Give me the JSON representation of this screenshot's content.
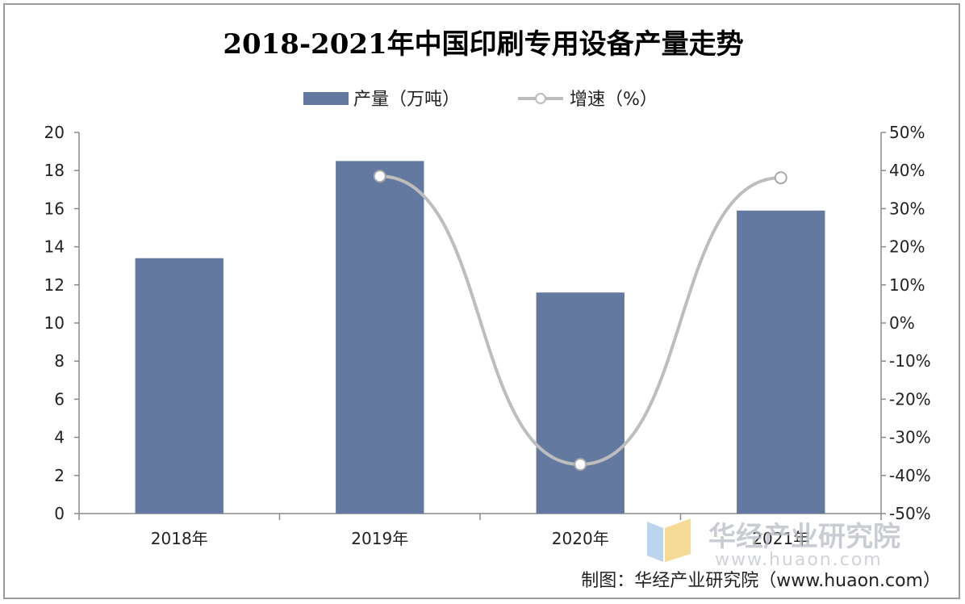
{
  "chart_data": {
    "type": "bar",
    "title": "2018-2021年中国印刷专用设备产量走势",
    "categories": [
      "2018年",
      "2019年",
      "2020年",
      "2021年"
    ],
    "series": [
      {
        "name": "产量（万吨）",
        "kind": "bar",
        "axis": "left",
        "color": "#63799f",
        "values": [
          13.4,
          18.5,
          11.6,
          15.9
        ]
      },
      {
        "name": "增速（%）",
        "kind": "line",
        "axis": "right",
        "color": "#bdbdbd",
        "values": [
          null,
          38.5,
          -37.1,
          38.1
        ]
      }
    ],
    "y_left": {
      "min": 0,
      "max": 20,
      "step": 2,
      "ticks": [
        "0",
        "2",
        "4",
        "6",
        "8",
        "10",
        "12",
        "14",
        "16",
        "18",
        "20"
      ]
    },
    "y_right": {
      "min": -50,
      "max": 50,
      "step": 10,
      "ticks": [
        "-50%",
        "-40%",
        "-30%",
        "-20%",
        "-10%",
        "0%",
        "10%",
        "20%",
        "30%",
        "40%",
        "50%"
      ]
    },
    "legend_position": "top-center",
    "grid": false
  },
  "source_text": "制图：华经产业研究院（www.huaon.com）",
  "watermark": {
    "name": "华经产业研究院",
    "url": "www.huaon.com"
  }
}
